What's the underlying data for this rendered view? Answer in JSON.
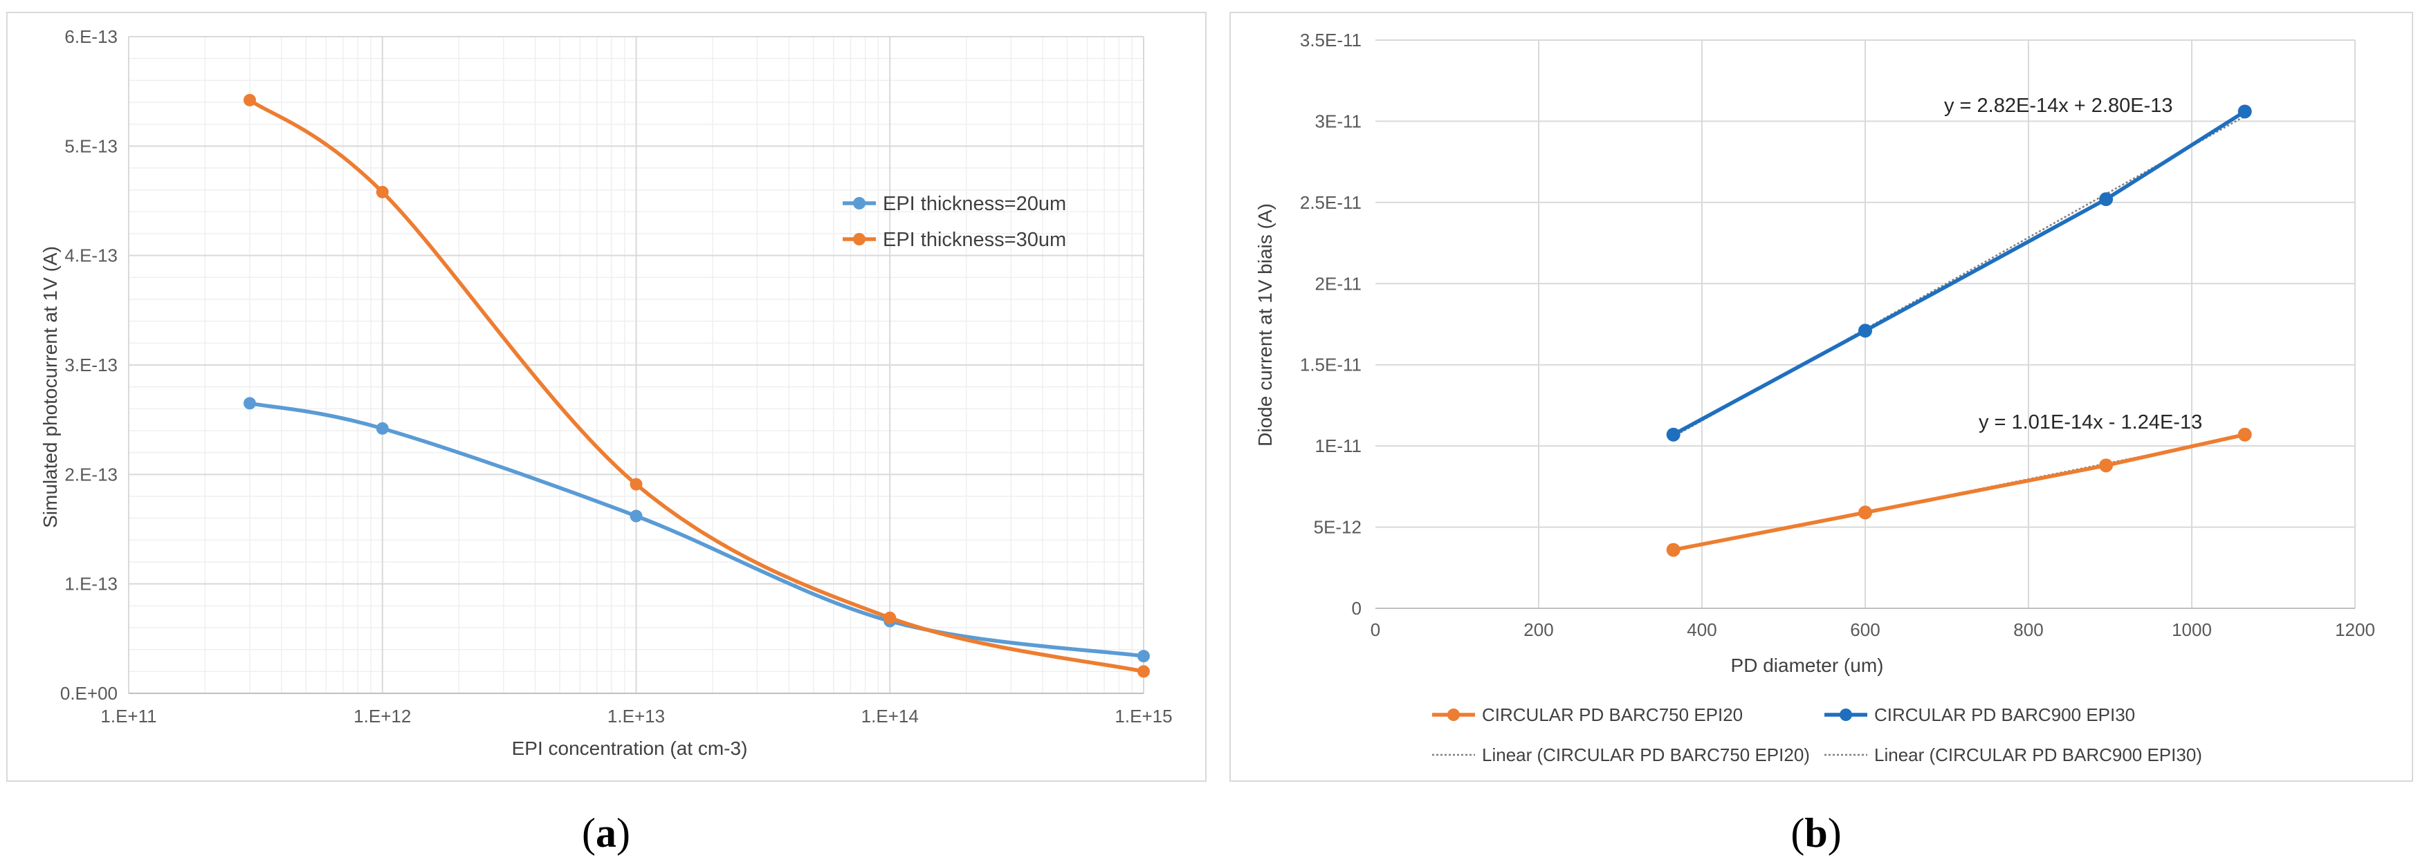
{
  "figure": {
    "panel_a": {
      "open": "(",
      "letter": "a",
      "close": ")"
    },
    "panel_b": {
      "open": "(",
      "letter": "b",
      "close": ")"
    }
  },
  "chart_data": [
    {
      "type": "line",
      "xscale": "log",
      "xlabel": "EPI concentration (at cm-3)",
      "ylabel": "Simulated photocurrent at 1V (A)",
      "xlim": [
        100000000000.0,
        1000000000000000.0
      ],
      "ylim": [
        0,
        6e-13
      ],
      "xticks": [
        100000000000.0,
        1000000000000.0,
        10000000000000.0,
        100000000000000.0,
        1000000000000000.0
      ],
      "xtick_labels": [
        "1.E+11",
        "1.E+12",
        "1.E+13",
        "1.E+14",
        "1.E+15"
      ],
      "yticks": [
        0,
        1e-13,
        2e-13,
        3e-13,
        4e-13,
        5e-13,
        6e-13
      ],
      "ytick_labels": [
        "0.E+00",
        "1.E-13",
        "2.E-13",
        "3.E-13",
        "4.E-13",
        "5.E-13",
        "6.E-13"
      ],
      "grid": true,
      "legend_position": "right",
      "series": [
        {
          "name": "EPI thickness=20um",
          "color": "#5B9BD5",
          "x": [
            300000000000.0,
            1000000000000.0,
            10000000000000.0,
            100000000000000.0,
            1000000000000000.0
          ],
          "y": [
            2.65e-13,
            2.42e-13,
            1.62e-13,
            6.6e-14,
            3.4e-14
          ]
        },
        {
          "name": "EPI thickness=30um",
          "color": "#ED7D31",
          "x": [
            300000000000.0,
            1000000000000.0,
            10000000000000.0,
            100000000000000.0,
            1000000000000000.0
          ],
          "y": [
            5.42e-13,
            4.58e-13,
            1.91e-13,
            6.9e-14,
            2e-14
          ]
        }
      ]
    },
    {
      "type": "scatter",
      "xlabel": "PD diameter (um)",
      "ylabel": "Diode current at 1V biais (A)",
      "xlim": [
        0,
        1200
      ],
      "ylim": [
        0,
        3.5e-11
      ],
      "xticks": [
        0,
        200,
        400,
        600,
        800,
        1000,
        1200
      ],
      "xtick_labels": [
        "0",
        "200",
        "400",
        "600",
        "800",
        "1000",
        "1200"
      ],
      "yticks": [
        0,
        5e-12,
        1e-11,
        1.5e-11,
        2e-11,
        2.5e-11,
        3e-11,
        3.5e-11
      ],
      "ytick_labels": [
        "0",
        "5E-12",
        "1E-11",
        "1.5E-11",
        "2E-11",
        "2.5E-11",
        "3E-11",
        "3.5E-11"
      ],
      "grid": true,
      "legend_position": "bottom",
      "series": [
        {
          "name": "CIRCULAR PD BARC750 EPI20",
          "color": "#ED7D31",
          "x": [
            365,
            600,
            895,
            1065
          ],
          "y": [
            3.6e-12,
            5.9e-12,
            8.8e-12,
            1.07e-11
          ]
        },
        {
          "name": "CIRCULAR PD BARC900 EPI30",
          "color": "#1F6FBF",
          "x": [
            365,
            600,
            895,
            1065
          ],
          "y": [
            1.07e-11,
            1.71e-11,
            2.52e-11,
            3.06e-11
          ]
        }
      ],
      "trendlines": [
        {
          "name": "Linear (CIRCULAR PD BARC750 EPI20)",
          "slope": 1.01e-14,
          "intercept": -1.24e-13,
          "equation": "y = 1.01E-14x - 1.24E-13",
          "color": "#7F7F7F"
        },
        {
          "name": "Linear (CIRCULAR PD BARC900 EPI30)",
          "slope": 2.82e-14,
          "intercept": 2.8e-13,
          "equation": "y = 2.82E-14x + 2.80E-13",
          "color": "#7F7F7F"
        }
      ]
    }
  ]
}
